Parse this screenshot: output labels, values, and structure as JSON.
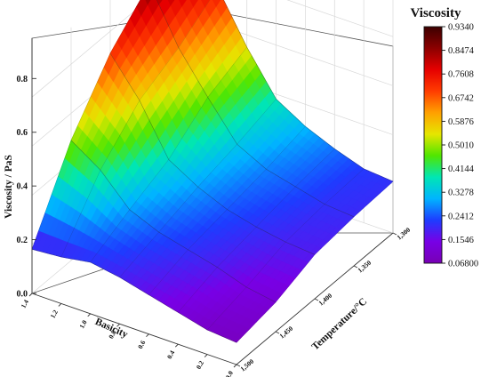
{
  "chart_data": {
    "type": "surface3d",
    "x_axis": {
      "label": "Basicity",
      "range": [
        0.0,
        1.4
      ],
      "ticks": [
        "0.0",
        "0.2",
        "0.4",
        "0.6",
        "0.8",
        "1.0",
        "1.2",
        "1.4"
      ]
    },
    "y_axis": {
      "label": "Temperature/°C",
      "range": [
        1300,
        1500
      ],
      "ticks": [
        "1,300",
        "1,350",
        "1,400",
        "1,450",
        "1,500"
      ]
    },
    "z_axis": {
      "label": "Viscosity / PaS",
      "range": [
        0.0,
        0.95
      ],
      "ticks": [
        "0.0",
        "0.2",
        "0.4",
        "0.6",
        "0.8"
      ]
    },
    "colorbar": {
      "title": "Viscosity",
      "range": [
        0.068,
        0.934
      ],
      "ticks": [
        "0.9340",
        "0.8474",
        "0.7608",
        "0.6742",
        "0.5876",
        "0.5010",
        "0.4144",
        "0.3278",
        "0.2412",
        "0.1546",
        "0.06800"
      ],
      "colors": [
        "#3c0000",
        "#8c0000",
        "#e60000",
        "#ff3c00",
        "#ffa000",
        "#e6e600",
        "#50e600",
        "#00e6b4",
        "#00b4ff",
        "#1e3cff",
        "#7800e6",
        "#7800b4"
      ]
    },
    "basicity": [
      0.0,
      0.2,
      0.4,
      0.6,
      0.8,
      1.0,
      1.2,
      1.4
    ],
    "temperature": [
      1300,
      1350,
      1400,
      1450,
      1500
    ],
    "viscosity": [
      [
        0.21,
        0.22,
        0.26,
        0.31,
        0.38,
        0.55,
        0.75,
        0.94
      ],
      [
        0.2,
        0.21,
        0.24,
        0.27,
        0.33,
        0.48,
        0.64,
        0.86
      ],
      [
        0.18,
        0.19,
        0.21,
        0.24,
        0.29,
        0.36,
        0.56,
        0.71
      ],
      [
        0.12,
        0.14,
        0.18,
        0.21,
        0.24,
        0.29,
        0.41,
        0.49
      ],
      [
        0.09,
        0.1,
        0.13,
        0.16,
        0.19,
        0.21,
        0.19,
        0.18
      ]
    ],
    "grid": true
  }
}
